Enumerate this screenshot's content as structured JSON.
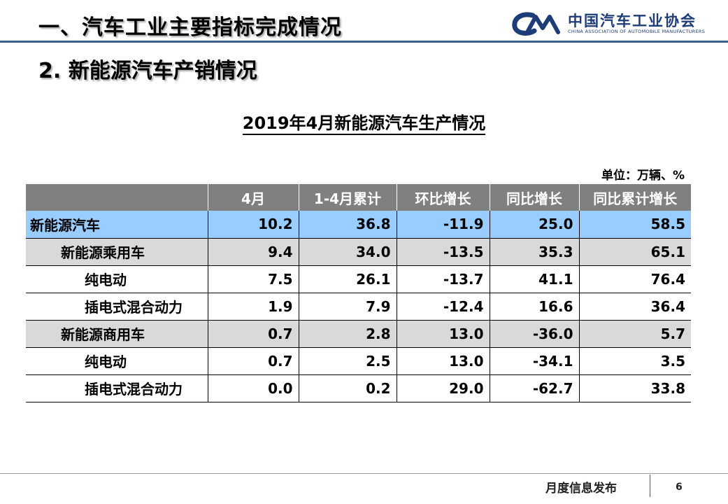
{
  "header": {
    "title": "一、汽车工业主要指标完成情况",
    "logo_cn": "中国汽车工业协会",
    "logo_en": "CHINA ASSOCIATION OF AUTOMOBILE MANUFACTURERS",
    "logo_icon": "cam-logo-icon",
    "accent_color": "#3f5c8e"
  },
  "section_title": "2. 新能源汽车产销情况",
  "table": {
    "title": "2019年4月新能源汽车生产情况",
    "unit": "单位：万辆、%",
    "columns": [
      "",
      "4月",
      "1-4月累计",
      "环比增长",
      "同比增长",
      "同比累计增长"
    ],
    "rows": [
      {
        "label": "新能源汽车",
        "values": [
          "10.2",
          "36.8",
          "-11.9",
          "25.0",
          "58.5"
        ]
      },
      {
        "label": "新能源乘用车",
        "values": [
          "9.4",
          "34.0",
          "-13.5",
          "35.3",
          "65.1"
        ]
      },
      {
        "label": "纯电动",
        "values": [
          "7.5",
          "26.1",
          "-13.7",
          "41.1",
          "76.4"
        ]
      },
      {
        "label": "插电式混合动力",
        "values": [
          "1.9",
          "7.9",
          "-12.4",
          "16.6",
          "36.4"
        ]
      },
      {
        "label": "新能源商用车",
        "values": [
          "0.7",
          "2.8",
          "13.0",
          "-36.0",
          "5.7"
        ]
      },
      {
        "label": "纯电动",
        "values": [
          "0.7",
          "2.5",
          "13.0",
          "-34.1",
          "3.5"
        ]
      },
      {
        "label": "插电式混合动力",
        "values": [
          "0.0",
          "0.2",
          "29.0",
          "-62.7",
          "33.8"
        ]
      }
    ],
    "colors": {
      "header_bg": "#808080",
      "total_row_bg": "#99ccff",
      "subtotal_row_bg": "#d9d9d9"
    }
  },
  "footer": {
    "text": "月度信息发布",
    "page": "6"
  }
}
